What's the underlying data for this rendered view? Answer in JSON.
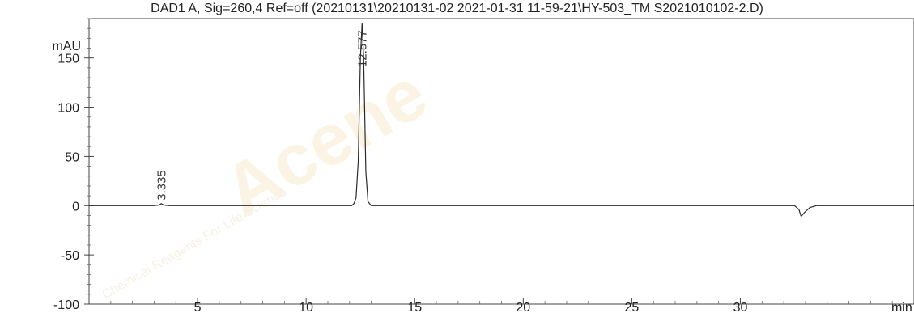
{
  "chart_data": {
    "type": "line",
    "title": "DAD1 A, Sig=260,4 Ref=off (20210131\\20210131-02 2021-01-31 11-59-21\\HY-503_TM S2021010102-2.D)",
    "ylabel": "mAU",
    "xlabel": "min",
    "xlim": [
      0,
      38
    ],
    "ylim": [
      -100,
      190
    ],
    "x_ticks": [
      5,
      10,
      15,
      20,
      25,
      30
    ],
    "y_ticks": [
      -100,
      -50,
      0,
      50,
      100,
      150
    ],
    "grid": false,
    "series": [
      {
        "x": [
          0,
          3.0,
          3.2,
          3.335,
          3.45,
          3.7,
          12.1,
          12.2,
          12.3,
          12.4,
          12.5,
          12.577,
          12.65,
          12.75,
          12.85,
          13.0,
          30.0,
          32.5,
          32.7,
          32.8,
          32.95,
          33.2,
          33.5,
          38
        ],
        "y": [
          0,
          0,
          0.5,
          2,
          0.5,
          0,
          0,
          2,
          8,
          45,
          150,
          185,
          150,
          35,
          4,
          0,
          0,
          0,
          -4,
          -11,
          -7,
          -2,
          0,
          0
        ]
      }
    ],
    "peak_labels": [
      {
        "x": 3.335,
        "label": "3.335"
      },
      {
        "x": 12.577,
        "label": "12.577"
      }
    ]
  },
  "watermark": {
    "brand": "Acene",
    "tagline": "Chemical Reagents For Life Science"
  }
}
